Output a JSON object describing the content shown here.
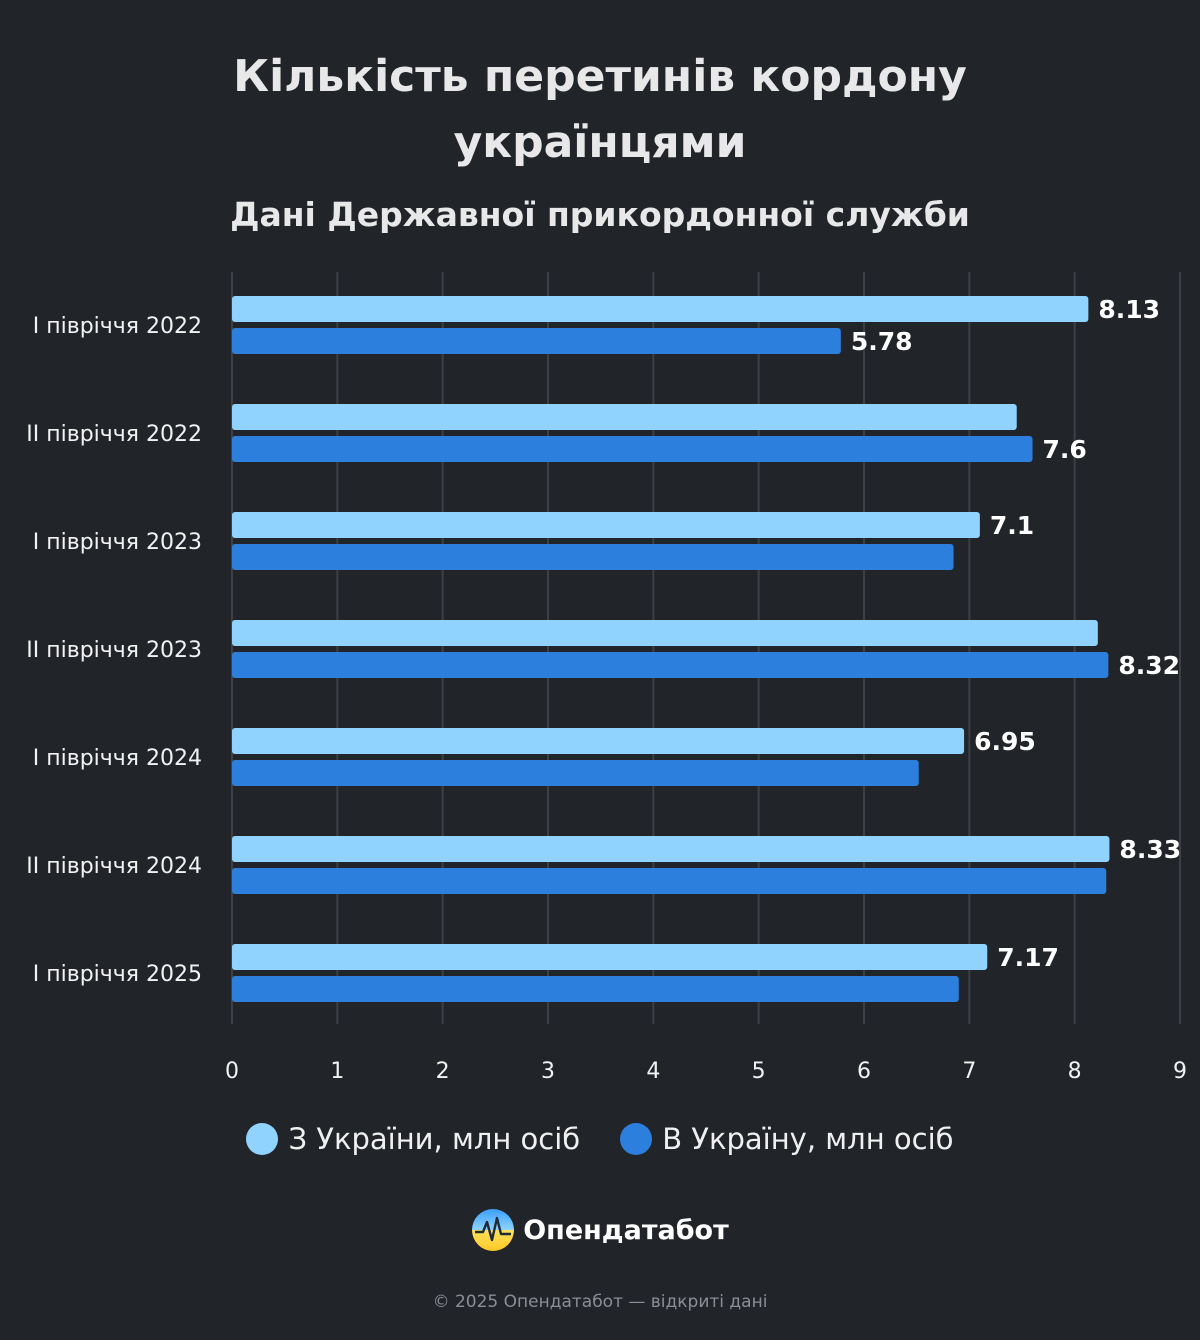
{
  "header": {
    "title_line1": "Кількість перетинів кордону",
    "title_line2": "українцями",
    "subtitle": "Дані Державної прикордонної служби"
  },
  "chart_data": {
    "type": "bar",
    "orientation": "horizontal",
    "title": "Кількість перетинів кордону українцями",
    "subtitle": "Дані Державної прикордонної служби",
    "categories": [
      "I півріччя 2022",
      "II півріччя 2022",
      "I півріччя 2023",
      "II півріччя 2023",
      "I півріччя 2024",
      "II півріччя 2024",
      "I півріччя 2025"
    ],
    "series": [
      {
        "name": "З України, млн осіб",
        "color": "#8fd3fe",
        "values": [
          8.13,
          7.45,
          7.1,
          8.22,
          6.95,
          8.33,
          7.17
        ],
        "labels": [
          "8.13",
          "",
          "7.1",
          "",
          "6.95",
          "8.33",
          "7.17"
        ]
      },
      {
        "name": "В Україну, млн осіб",
        "color": "#2c7fdc",
        "values": [
          5.78,
          7.6,
          6.85,
          8.32,
          6.52,
          8.3,
          6.9
        ],
        "labels": [
          "5.78",
          "7.6",
          "",
          "8.32",
          "",
          "",
          ""
        ]
      }
    ],
    "xlim": [
      0,
      9
    ],
    "xticks": [
      "0",
      "1",
      "2",
      "3",
      "4",
      "5",
      "6",
      "7",
      "8",
      "9"
    ],
    "grid": true,
    "legend_position": "bottom"
  },
  "legend": [
    {
      "label": "З України, млн осіб",
      "color": "#8fd3fe"
    },
    {
      "label": "В Україну, млн осіб",
      "color": "#2c7fdc"
    }
  ],
  "brand": {
    "name": "Опендатабот",
    "logo_icon": "opendatabot-logo-icon"
  },
  "footer": {
    "text": "© 2025 Опендатабот — відкриті дані"
  }
}
